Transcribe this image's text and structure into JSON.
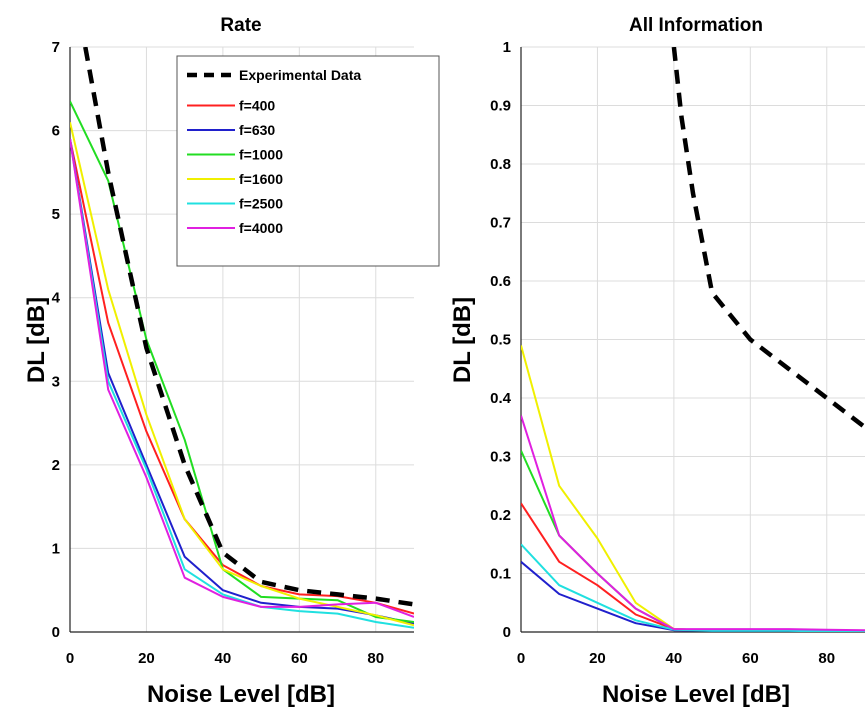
{
  "chart_data": [
    {
      "type": "line",
      "title": "Rate",
      "xlabel": "Noise Level [dB]",
      "ylabel": "DL [dB]",
      "xlim": [
        0,
        90
      ],
      "ylim": [
        0,
        7
      ],
      "xticks": [
        0,
        20,
        40,
        60,
        80
      ],
      "yticks": [
        0,
        1,
        2,
        3,
        4,
        5,
        6,
        7
      ],
      "grid": true,
      "legend_position": "top-right",
      "series": [
        {
          "name": "Experimental Data",
          "color": "#000000",
          "dashed": true,
          "x": [
            4,
            10,
            20,
            30,
            40,
            50,
            60,
            70,
            80,
            90
          ],
          "y": [
            7.0,
            5.5,
            3.4,
            2.0,
            0.95,
            0.6,
            0.5,
            0.45,
            0.4,
            0.33
          ]
        },
        {
          "name": "f=400",
          "color": "#ff2020",
          "x": [
            0,
            10,
            20,
            30,
            40,
            50,
            60,
            70,
            80,
            90
          ],
          "y": [
            5.9,
            3.7,
            2.4,
            1.35,
            0.8,
            0.55,
            0.45,
            0.43,
            0.35,
            0.22
          ]
        },
        {
          "name": "f=630",
          "color": "#2020cc",
          "x": [
            0,
            10,
            20,
            30,
            40,
            50,
            60,
            70,
            80,
            90
          ],
          "y": [
            5.9,
            3.1,
            2.0,
            0.9,
            0.5,
            0.35,
            0.3,
            0.28,
            0.2,
            0.1
          ]
        },
        {
          "name": "f=1000",
          "color": "#22dd22",
          "x": [
            0,
            10,
            20,
            30,
            40,
            50,
            60,
            70,
            80,
            90
          ],
          "y": [
            6.35,
            5.4,
            3.5,
            2.3,
            0.75,
            0.42,
            0.4,
            0.38,
            0.18,
            0.12
          ]
        },
        {
          "name": "f=1600",
          "color": "#f0f000",
          "x": [
            0,
            10,
            20,
            30,
            40,
            50,
            60,
            70,
            80,
            90
          ],
          "y": [
            6.1,
            4.1,
            2.6,
            1.35,
            0.75,
            0.55,
            0.4,
            0.3,
            0.2,
            0.08
          ]
        },
        {
          "name": "f=2500",
          "color": "#20e0e0",
          "x": [
            0,
            10,
            20,
            30,
            40,
            50,
            60,
            70,
            80,
            90
          ],
          "y": [
            5.9,
            3.0,
            1.95,
            0.75,
            0.45,
            0.3,
            0.25,
            0.22,
            0.12,
            0.05
          ]
        },
        {
          "name": "f=4000",
          "color": "#e020e0",
          "x": [
            0,
            10,
            20,
            30,
            40,
            50,
            60,
            70,
            80,
            90
          ],
          "y": [
            5.9,
            2.9,
            1.85,
            0.65,
            0.42,
            0.3,
            0.3,
            0.33,
            0.35,
            0.18
          ]
        }
      ]
    },
    {
      "type": "line",
      "title": "All Information",
      "xlabel": "Noise Level [dB]",
      "ylabel": "DL [dB]",
      "xlim": [
        0,
        90
      ],
      "ylim": [
        0,
        1
      ],
      "xticks": [
        0,
        20,
        40,
        60,
        80
      ],
      "yticks": [
        0,
        0.1,
        0.2,
        0.3,
        0.4,
        0.5,
        0.6,
        0.7,
        0.8,
        0.9,
        1
      ],
      "grid": true,
      "series": [
        {
          "name": "Experimental Data",
          "color": "#000000",
          "dashed": true,
          "x": [
            40,
            42,
            45,
            50,
            60,
            70,
            80,
            90
          ],
          "y": [
            1.0,
            0.88,
            0.75,
            0.58,
            0.5,
            0.45,
            0.4,
            0.35
          ]
        },
        {
          "name": "f=400",
          "color": "#ff2020",
          "x": [
            0,
            10,
            20,
            30,
            40,
            50,
            60,
            70,
            80,
            90
          ],
          "y": [
            0.22,
            0.12,
            0.08,
            0.03,
            0.005,
            0.003,
            0.003,
            0.003,
            0.002,
            0.001
          ]
        },
        {
          "name": "f=630",
          "color": "#2020cc",
          "x": [
            0,
            10,
            20,
            30,
            40,
            50,
            60,
            70,
            80,
            90
          ],
          "y": [
            0.12,
            0.065,
            0.04,
            0.015,
            0.003,
            0.002,
            0.002,
            0.002,
            0.001,
            0.001
          ]
        },
        {
          "name": "f=1000",
          "color": "#22dd22",
          "x": [
            0,
            10,
            20,
            30,
            40,
            50,
            60,
            70,
            80,
            90
          ],
          "y": [
            0.31,
            0.165,
            0.1,
            0.04,
            0.005,
            0.003,
            0.003,
            0.003,
            0.002,
            0.001
          ]
        },
        {
          "name": "f=1600",
          "color": "#f0f000",
          "x": [
            0,
            10,
            20,
            30,
            40,
            50,
            60,
            70,
            80,
            90
          ],
          "y": [
            0.49,
            0.25,
            0.16,
            0.05,
            0.005,
            0.003,
            0.003,
            0.003,
            0.002,
            0.001
          ]
        },
        {
          "name": "f=2500",
          "color": "#20e0e0",
          "x": [
            0,
            10,
            20,
            30,
            40,
            50,
            60,
            70,
            80,
            90
          ],
          "y": [
            0.15,
            0.08,
            0.05,
            0.02,
            0.004,
            0.002,
            0.002,
            0.002,
            0.001,
            0.001
          ]
        },
        {
          "name": "f=4000",
          "color": "#e020e0",
          "x": [
            0,
            10,
            20,
            30,
            40,
            50,
            60,
            70,
            80,
            90
          ],
          "y": [
            0.37,
            0.165,
            0.1,
            0.04,
            0.005,
            0.005,
            0.005,
            0.005,
            0.004,
            0.003
          ]
        }
      ]
    }
  ]
}
